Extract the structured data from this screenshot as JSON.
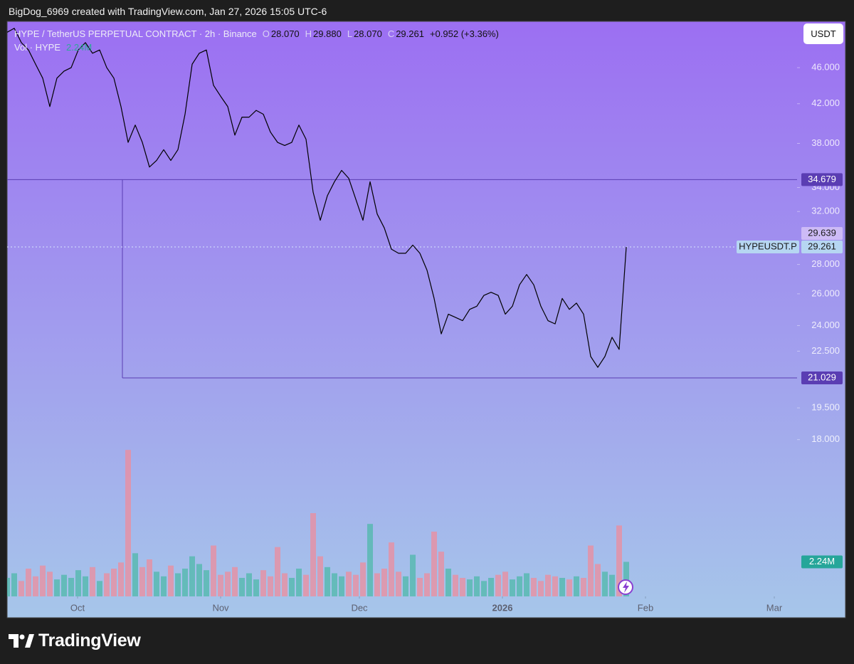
{
  "credit": "BigDog_6969 created with TradingView.com, Jan 27, 2026 15:05 UTC-6",
  "brand": "TradingView",
  "currency_button": "USDT",
  "legend": {
    "o_label": "O",
    "open": "28.070",
    "h_label": "H",
    "high": "29.880",
    "l_label": "L",
    "low": "28.070",
    "c_label": "C",
    "close": "29.261",
    "change": "+0.952 (+3.36%)"
  },
  "chart_data": {
    "type": "line",
    "series": [
      {
        "name": "HYPE / TetherUS PERPETUAL CONTRACT · 2h · Binance",
        "color": "#000000",
        "values": [
          50.3,
          50.8,
          49.0,
          48.1,
          46.4,
          44.8,
          41.7,
          44.8,
          45.6,
          46.0,
          48.1,
          49.0,
          47.7,
          48.1,
          46.0,
          44.8,
          41.7,
          38.1,
          39.8,
          38.1,
          35.8,
          36.4,
          37.4,
          36.4,
          37.4,
          40.9,
          46.4,
          47.7,
          48.1,
          44.0,
          42.8,
          41.7,
          38.8,
          40.6,
          40.6,
          41.3,
          40.9,
          39.1,
          38.1,
          37.8,
          38.1,
          39.8,
          38.4,
          33.6,
          31.3,
          33.3,
          34.5,
          35.5,
          34.8,
          33.0,
          31.3,
          34.5,
          31.8,
          30.7,
          29.1,
          28.8,
          28.8,
          29.4,
          28.8,
          27.6,
          25.7,
          23.5,
          24.7,
          24.5,
          24.3,
          25.0,
          25.2,
          25.9,
          26.1,
          25.9,
          24.7,
          25.2,
          26.6,
          27.3,
          26.6,
          25.2,
          24.3,
          24.1,
          25.7,
          25.0,
          25.4,
          24.7,
          22.2,
          21.6,
          22.2,
          23.3,
          22.6,
          29.26
        ]
      },
      {
        "name": "Vol · HYPE",
        "type": "bar",
        "axis": "y2",
        "up_color": "#4fb8aa",
        "down_color": "#ee8c9c",
        "values": [
          1.2,
          1.5,
          1.0,
          1.8,
          1.3,
          2.0,
          1.6,
          1.1,
          1.4,
          1.2,
          1.7,
          1.3,
          1.9,
          1.0,
          1.5,
          1.8,
          2.2,
          9.5,
          2.8,
          1.9,
          2.4,
          1.6,
          1.3,
          2.0,
          1.5,
          1.8,
          2.6,
          2.1,
          1.7,
          3.3,
          1.4,
          1.6,
          1.9,
          1.2,
          1.5,
          1.1,
          1.7,
          1.3,
          3.2,
          1.5,
          1.2,
          1.8,
          1.4,
          5.4,
          2.6,
          1.9,
          1.5,
          1.3,
          1.6,
          1.4,
          2.2,
          4.7,
          1.5,
          1.8,
          3.5,
          1.6,
          1.3,
          2.7,
          1.2,
          1.5,
          4.2,
          2.9,
          1.8,
          1.4,
          1.2,
          1.1,
          1.3,
          1.0,
          1.2,
          1.4,
          1.6,
          1.1,
          1.3,
          1.5,
          1.2,
          1.0,
          1.4,
          1.3,
          1.2,
          1.1,
          1.3,
          1.2,
          3.3,
          2.1,
          1.6,
          1.4,
          4.6,
          2.24
        ]
      }
    ],
    "xlim": [
      0,
      111
    ],
    "xticks": [
      {
        "value": 9.9,
        "label": "Oct"
      },
      {
        "value": 30,
        "label": "Nov"
      },
      {
        "value": 49.5,
        "label": "Dec"
      },
      {
        "value": 69.6,
        "label": "2026"
      },
      {
        "value": 89.7,
        "label": "Feb"
      },
      {
        "value": 107.8,
        "label": "Mar"
      }
    ],
    "ylim": [
      12.12,
      51.7
    ],
    "log_scale": true,
    "yticks": [
      {
        "value": 46,
        "label": "46.000"
      },
      {
        "value": 42,
        "label": "42.000"
      },
      {
        "value": 38,
        "label": "38.000"
      },
      {
        "value": 34,
        "label": "34.000"
      },
      {
        "value": 32,
        "label": "32.000"
      },
      {
        "value": 28,
        "label": "28.000"
      },
      {
        "value": 26,
        "label": "26.000"
      },
      {
        "value": 24,
        "label": "24.000"
      },
      {
        "value": 22.5,
        "label": "22.500"
      },
      {
        "value": 19.5,
        "label": "19.500"
      },
      {
        "value": 18,
        "label": "18.000"
      }
    ],
    "y2lim": [
      0,
      9.6
    ],
    "levels": [
      34.679,
      21.029
    ],
    "level_color": "#5a3db3",
    "box_start": 16.2,
    "high_label": 29.639,
    "last_price": {
      "label": "HYPEUSDT.P",
      "value": 29.261
    },
    "volume_label": {
      "value": 2.24,
      "label": "2.24M"
    }
  }
}
